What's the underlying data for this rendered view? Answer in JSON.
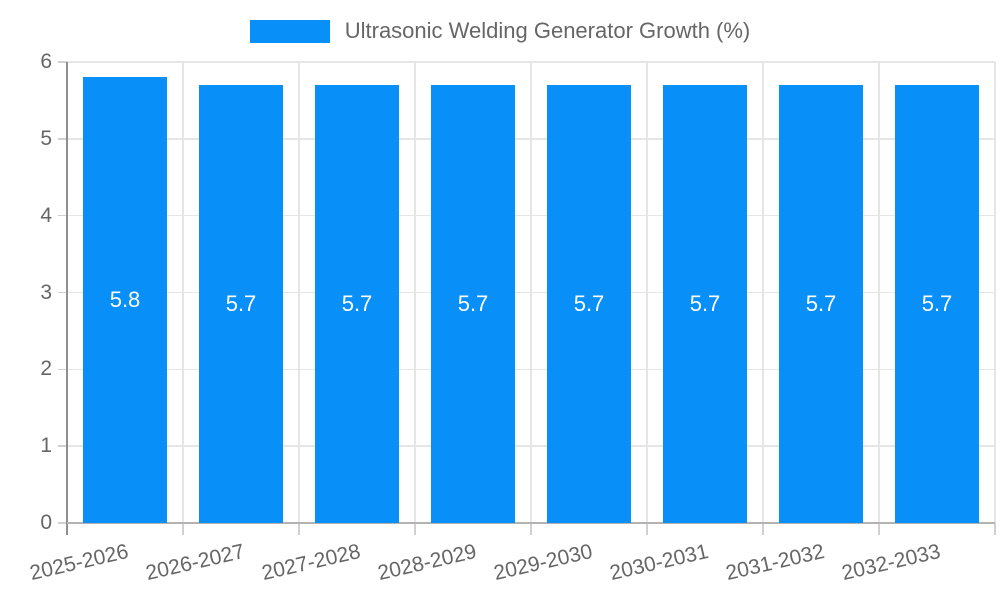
{
  "legend": {
    "label": "Ultrasonic Welding Generator Growth (%)"
  },
  "chart_data": {
    "type": "bar",
    "title": "Ultrasonic Welding Generator Growth (%)",
    "categories": [
      "2025-2026",
      "2026-2027",
      "2027-2028",
      "2028-2029",
      "2029-2030",
      "2030-2031",
      "2031-2032",
      "2032-2033"
    ],
    "values": [
      5.8,
      5.7,
      5.7,
      5.7,
      5.7,
      5.7,
      5.7,
      5.7
    ],
    "value_labels": [
      "5.8",
      "5.7",
      "5.7",
      "5.7",
      "5.7",
      "5.7",
      "5.7",
      "5.7"
    ],
    "xlabel": "",
    "ylabel": "",
    "ylim": [
      0,
      6
    ],
    "yticks": [
      "0",
      "1",
      "2",
      "3",
      "4",
      "5",
      "6"
    ],
    "grid": true,
    "legend_position": "top",
    "colors": {
      "bar": "#0890f8",
      "value_label": "#ffffff",
      "tick_text": "#666666",
      "gridline": "#e6e6e6",
      "axis_line_y": "#8f8f8f",
      "axis_line_x": "#b3b3b3",
      "background": "#ffffff"
    }
  }
}
